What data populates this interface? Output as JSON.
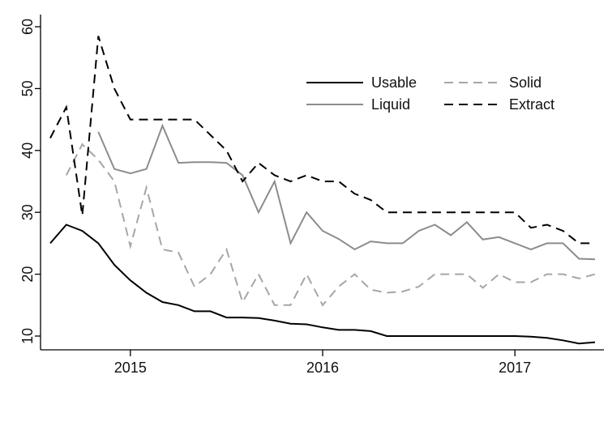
{
  "chart_data": {
    "type": "line",
    "title": "",
    "xlabel": "",
    "ylabel": "",
    "x": [
      "2014-08",
      "2014-09",
      "2014-10",
      "2014-11",
      "2014-12",
      "2015-01",
      "2015-02",
      "2015-03",
      "2015-04",
      "2015-05",
      "2015-06",
      "2015-07",
      "2015-08",
      "2015-09",
      "2015-10",
      "2015-11",
      "2015-12",
      "2016-01",
      "2016-02",
      "2016-03",
      "2016-04",
      "2016-05",
      "2016-06",
      "2016-07",
      "2016-08",
      "2016-09",
      "2016-10",
      "2016-11",
      "2016-12",
      "2017-01",
      "2017-02",
      "2017-03",
      "2017-04",
      "2017-05",
      "2017-06"
    ],
    "xlim": [
      "2014-08",
      "2017-06"
    ],
    "ylim": [
      8,
      61
    ],
    "x_ticks": [
      {
        "value": "2015-01",
        "label": "2015"
      },
      {
        "value": "2016-01",
        "label": "2016"
      },
      {
        "value": "2017-01",
        "label": "2017"
      }
    ],
    "y_ticks": [
      10,
      20,
      30,
      40,
      50,
      60
    ],
    "grid": false,
    "legend_position": "top-right",
    "series": [
      {
        "name": "Usable",
        "color": "#000000",
        "dash": "solid",
        "values": [
          25,
          28,
          27,
          25,
          21.5,
          19,
          17,
          15.5,
          15,
          14,
          14,
          13,
          13,
          12.9,
          12.5,
          12,
          11.9,
          11.4,
          11,
          11,
          10.8,
          10,
          10,
          10,
          10,
          10,
          10,
          10,
          10,
          10,
          9.9,
          9.7,
          9.3,
          8.8,
          9
        ]
      },
      {
        "name": "Liquid",
        "color": "#8c8c8c",
        "dash": "solid",
        "values": [
          null,
          null,
          null,
          43,
          37,
          36.3,
          37,
          44,
          38,
          38.1,
          38.1,
          38,
          36,
          30,
          35,
          25,
          30,
          27,
          25.7,
          24,
          25.3,
          25,
          25,
          27,
          28,
          26.3,
          28.4,
          25.6,
          26,
          25,
          24,
          25,
          25,
          22.5,
          22.4
        ]
      },
      {
        "name": "Solid",
        "color": "#a6a6a6",
        "dash": "dashed",
        "values": [
          null,
          36,
          41,
          38.5,
          35,
          24.5,
          34,
          24,
          23.5,
          18,
          20,
          24,
          15.5,
          20,
          15,
          15,
          20,
          15,
          18,
          20,
          17.5,
          17,
          17.2,
          18,
          20,
          20,
          20,
          17.8,
          20,
          18.7,
          18.7,
          20,
          20,
          19.3,
          20
        ]
      },
      {
        "name": "Extract",
        "color": "#000000",
        "dash": "dashed",
        "values": [
          42,
          47,
          29.5,
          58.5,
          50,
          45,
          45,
          45,
          45,
          45,
          42.5,
          40,
          35,
          38,
          36,
          35,
          36,
          35,
          35,
          33,
          32,
          30,
          30,
          30,
          30,
          30,
          30,
          30,
          30,
          30,
          27.5,
          28,
          27,
          25,
          25
        ]
      }
    ]
  }
}
